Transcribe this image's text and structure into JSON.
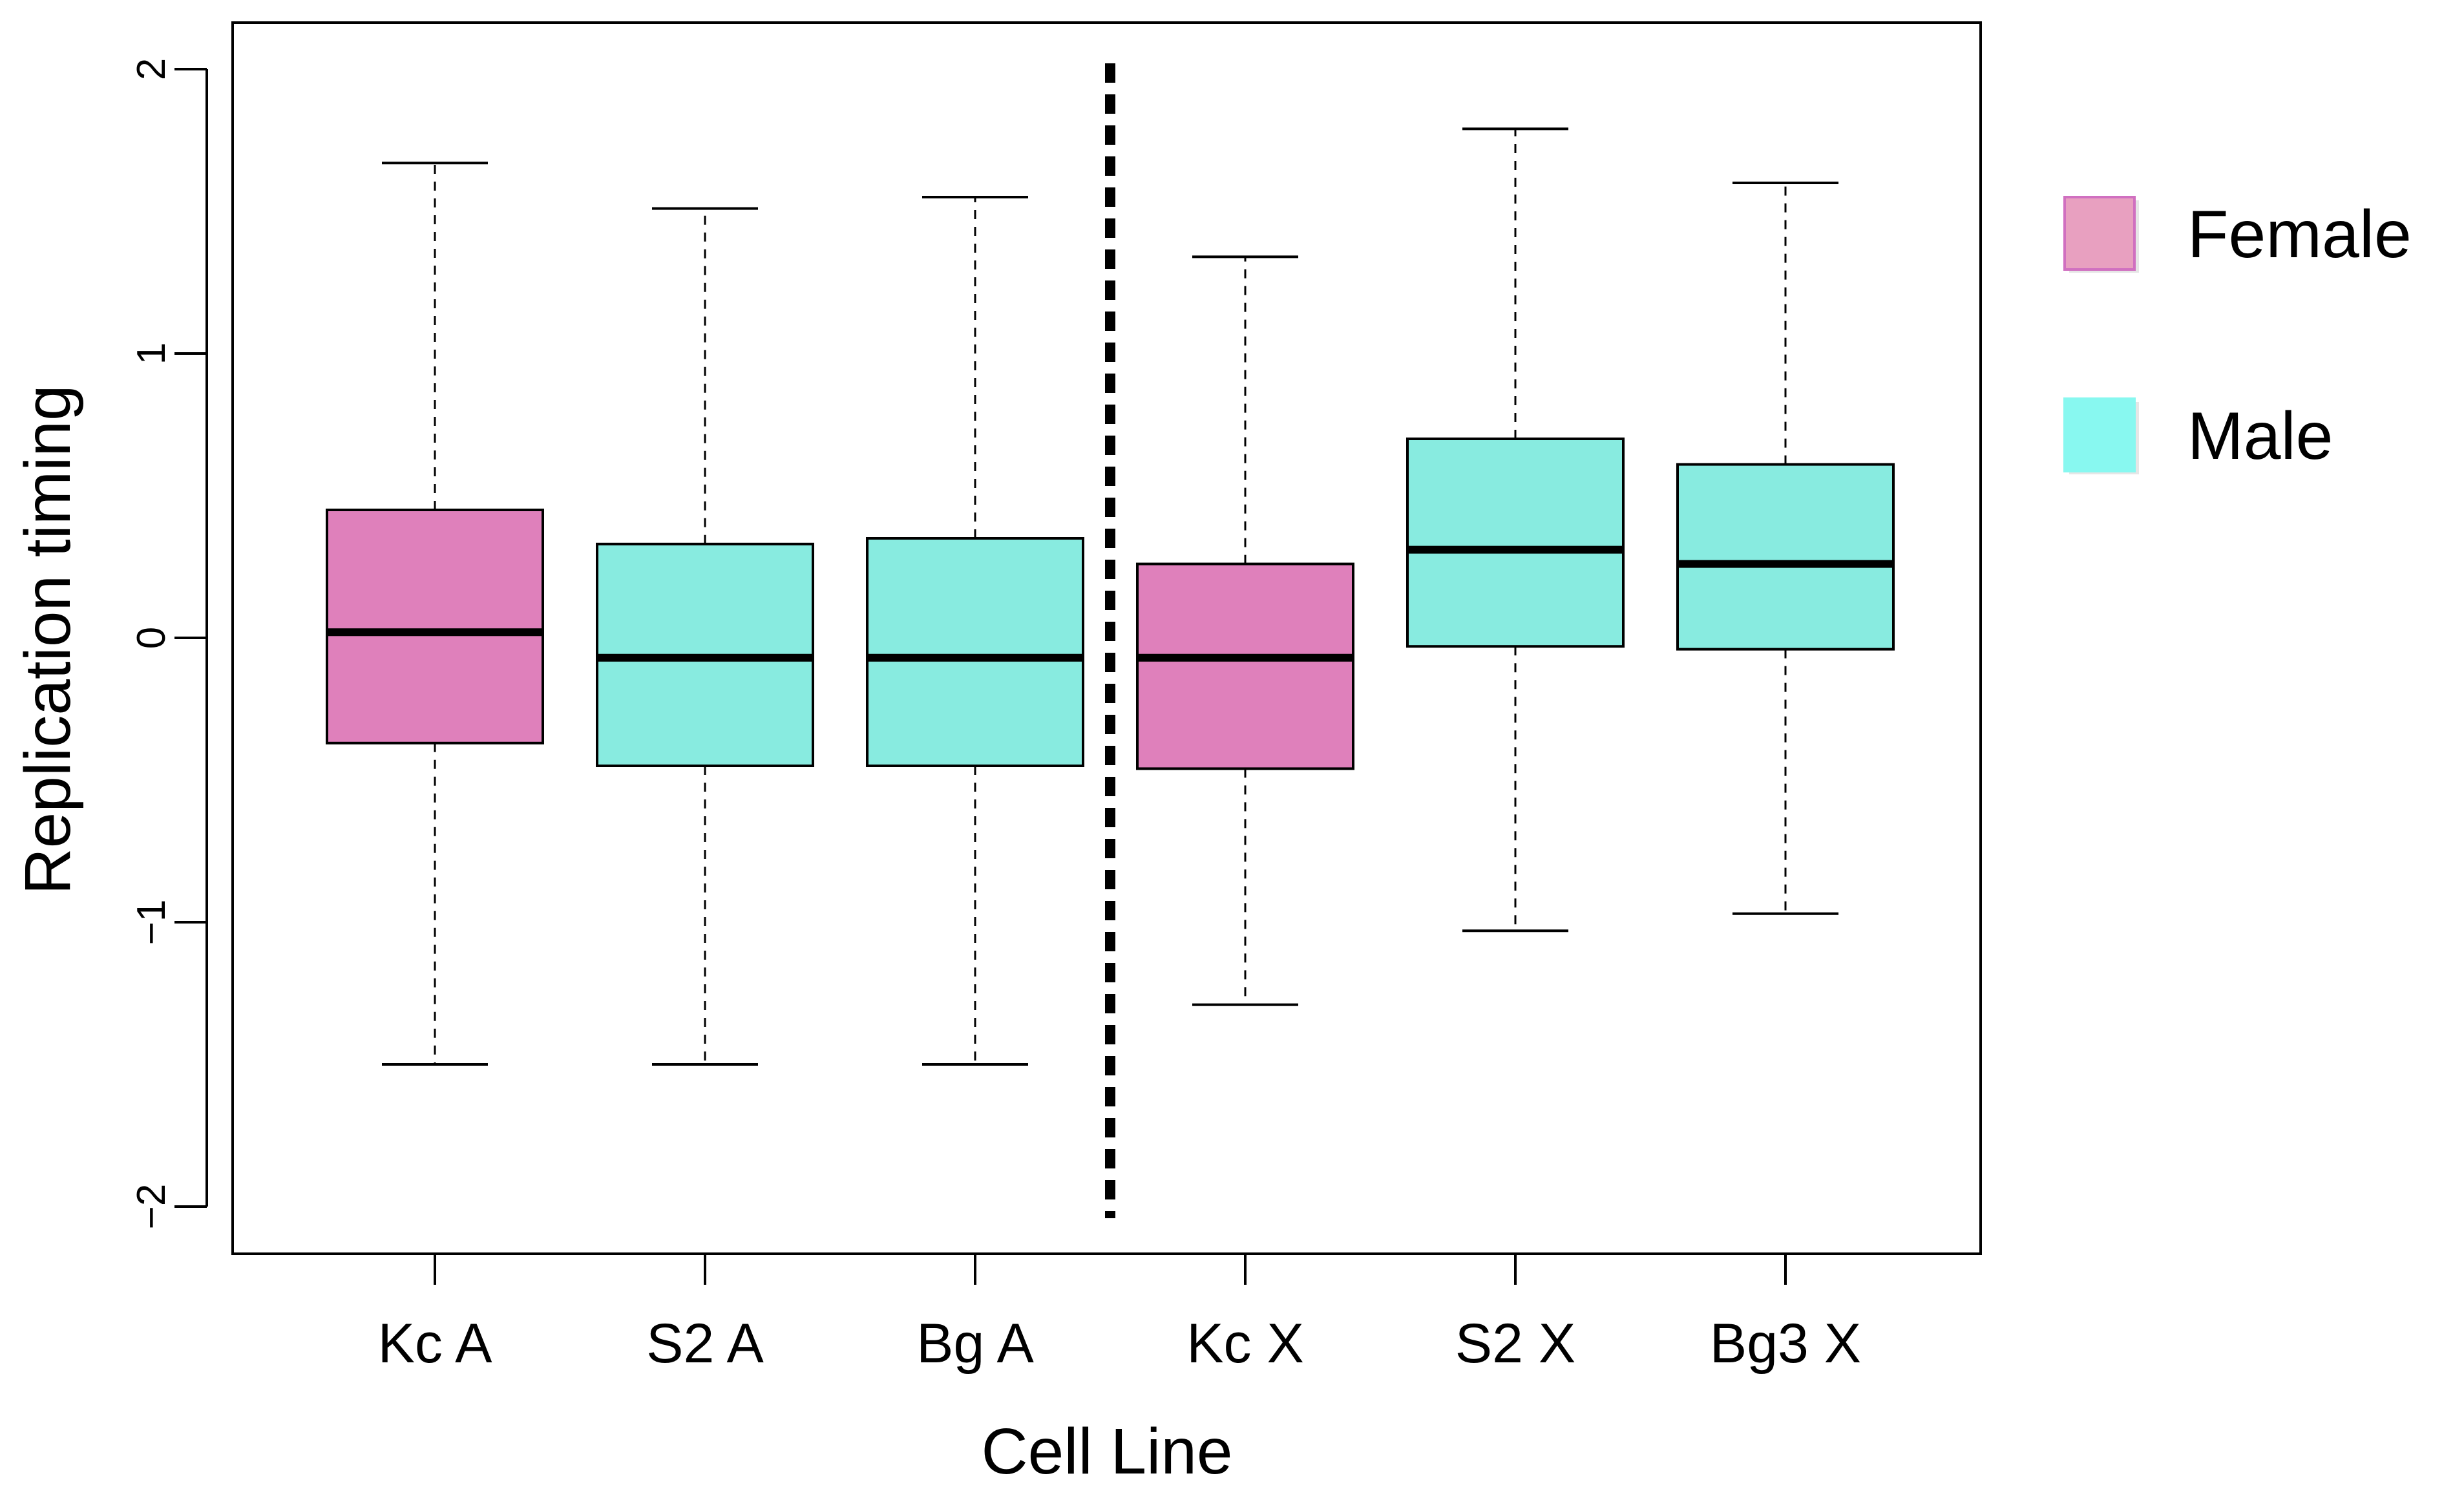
{
  "chart_data": {
    "type": "boxplot",
    "xlabel": "Cell Line",
    "ylabel": "Replication timing",
    "ylim": [
      -2.15,
      2.15
    ],
    "y_ticks": [
      -2,
      -1,
      0,
      1,
      2
    ],
    "y_tick_labels": [
      "−2",
      "−1",
      "0",
      "1",
      "2"
    ],
    "categories": [
      "Kc A",
      "S2 A",
      "Bg A",
      "Kc X",
      "S2 X",
      "Bg3 X"
    ],
    "groups": [
      "Female",
      "Male",
      "Male",
      "Female",
      "Male",
      "Male"
    ],
    "boxes": [
      {
        "label": "Kc A",
        "group": "Female",
        "whisker_low": -1.5,
        "q1": -0.37,
        "median": 0.02,
        "q3": 0.45,
        "whisker_high": 1.67
      },
      {
        "label": "S2 A",
        "group": "Male",
        "whisker_low": -1.5,
        "q1": -0.45,
        "median": -0.07,
        "q3": 0.33,
        "whisker_high": 1.51
      },
      {
        "label": "Bg A",
        "group": "Male",
        "whisker_low": -1.5,
        "q1": -0.45,
        "median": -0.07,
        "q3": 0.35,
        "whisker_high": 1.55
      },
      {
        "label": "Kc X",
        "group": "Female",
        "whisker_low": -1.29,
        "q1": -0.46,
        "median": -0.07,
        "q3": 0.26,
        "whisker_high": 1.34
      },
      {
        "label": "S2 X",
        "group": "Male",
        "whisker_low": -1.03,
        "q1": -0.03,
        "median": 0.31,
        "q3": 0.7,
        "whisker_high": 1.79
      },
      {
        "label": "Bg3 X",
        "group": "Male",
        "whisker_low": -0.97,
        "q1": -0.04,
        "median": 0.26,
        "q3": 0.61,
        "whisker_high": 1.6
      }
    ],
    "separator_after_index": 2,
    "legend": {
      "position": "right",
      "items": [
        {
          "label": "Female",
          "color": "#e8a0c0",
          "border": "#d070c0"
        },
        {
          "label": "Male",
          "color": "#88f8f0",
          "border": "#88f8f0"
        }
      ]
    },
    "colors": {
      "Female": "#df80bb",
      "Male": "#88ebe0"
    },
    "grid": false
  }
}
